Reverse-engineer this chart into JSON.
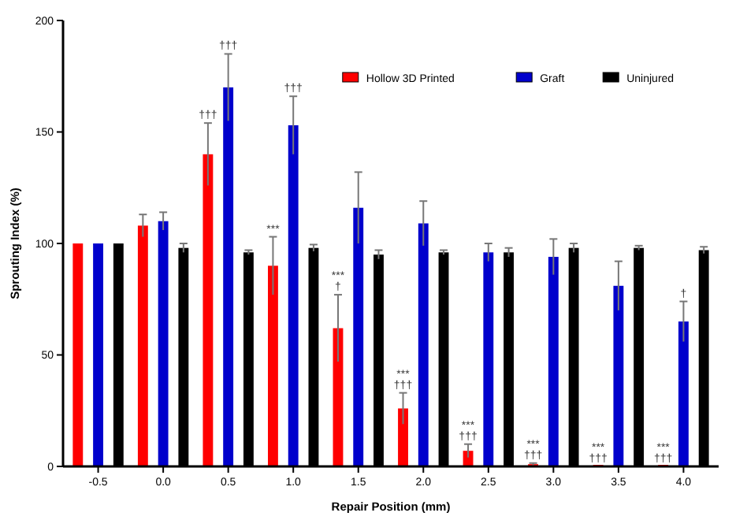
{
  "chart_data": {
    "type": "bar",
    "xlabel": "Repair Position (mm)",
    "ylabel": "Sprouting Index (%)",
    "categories": [
      "-0.5",
      "0.0",
      "0.5",
      "1.0",
      "1.5",
      "2.0",
      "2.5",
      "3.0",
      "3.5",
      "4.0"
    ],
    "ylim": [
      0,
      200
    ],
    "yticks": [
      0,
      50,
      100,
      150,
      200
    ],
    "legend": "top right",
    "grid": false,
    "series": [
      {
        "name": "Hollow 3D Printed",
        "color": "#ff0000",
        "values": [
          100,
          108,
          140,
          90,
          62,
          26,
          7,
          1,
          0,
          0
        ],
        "errors": [
          null,
          5,
          14,
          13,
          15,
          7,
          3,
          0.5,
          null,
          null
        ],
        "value_labels": [
          null,
          null,
          "†††",
          "***",
          "***\n†",
          "***\n†††",
          "***\n†††",
          "***\n†††",
          "***\n†††",
          "***\n†††"
        ]
      },
      {
        "name": "Graft",
        "color": "#0000cc",
        "values": [
          100,
          110,
          170,
          153,
          116,
          109,
          96,
          94,
          81,
          65
        ],
        "errors": [
          null,
          4,
          15,
          13,
          16,
          10,
          4,
          8,
          11,
          9
        ],
        "value_labels": [
          null,
          null,
          "†††",
          "†††",
          null,
          null,
          null,
          null,
          null,
          "†"
        ]
      },
      {
        "name": "Uninjured",
        "color": "#000000",
        "values": [
          100,
          98,
          96,
          98,
          95,
          96,
          96,
          98,
          98,
          97
        ],
        "errors": [
          null,
          2,
          1,
          1.5,
          2,
          1,
          2,
          2,
          1,
          1.5
        ]
      }
    ]
  }
}
